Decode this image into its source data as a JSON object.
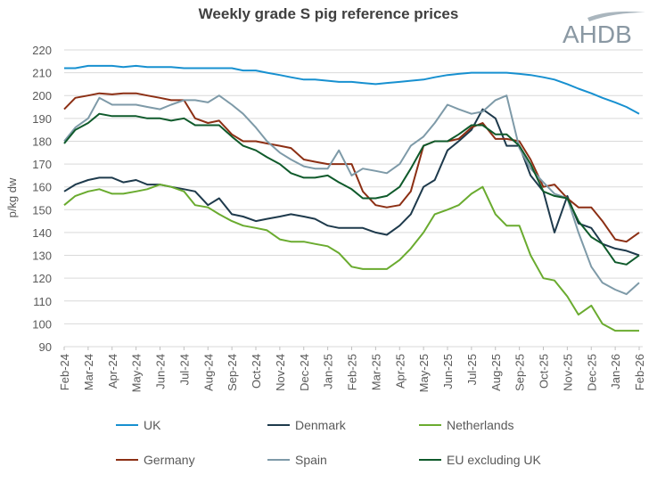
{
  "chart_data": {
    "type": "line",
    "title": "Weekly grade S pig reference prices",
    "ylabel": "p/kg dw",
    "xlabel": "",
    "ylim": [
      90,
      220
    ],
    "yticks": [
      90,
      100,
      110,
      120,
      130,
      140,
      150,
      160,
      170,
      180,
      190,
      200,
      210,
      220
    ],
    "xtick_labels": [
      "Feb-24",
      "Mar-24",
      "Apr-24",
      "May-24",
      "Jun-24",
      "Jul-24",
      "Aug-24",
      "Sep-24",
      "Oct-24",
      "Nov-24",
      "Dec-24",
      "Jan-25",
      "Feb-25",
      "Mar-25",
      "Apr-25",
      "May-25",
      "Jun-25",
      "Jul-25",
      "Aug-25",
      "Sep-25",
      "Oct-25",
      "Nov-25",
      "Dec-25",
      "Jan-26",
      "Feb-26"
    ],
    "grid": true,
    "legend": "bottom",
    "x": [
      "2024-02-01",
      "2024-02-15",
      "2024-03-01",
      "2024-03-15",
      "2024-04-01",
      "2024-04-15",
      "2024-05-01",
      "2024-05-15",
      "2024-06-01",
      "2024-06-15",
      "2024-07-01",
      "2024-07-15",
      "2024-08-01",
      "2024-08-15",
      "2024-09-01",
      "2024-09-15",
      "2024-10-01",
      "2024-10-15",
      "2024-11-01",
      "2024-11-15",
      "2024-12-01",
      "2024-12-15",
      "2025-01-01",
      "2025-01-15",
      "2025-02-01",
      "2025-02-15",
      "2025-03-01",
      "2025-03-15",
      "2025-04-01",
      "2025-04-15",
      "2025-05-01",
      "2025-05-15",
      "2025-06-01",
      "2025-06-15",
      "2025-07-01",
      "2025-07-15",
      "2025-08-01",
      "2025-08-15",
      "2025-09-01",
      "2025-09-15",
      "2025-10-01",
      "2025-10-15",
      "2025-11-01",
      "2025-11-15",
      "2025-12-01",
      "2025-12-15",
      "2026-01-01",
      "2026-01-15",
      "2026-02-01"
    ],
    "series": [
      {
        "name": "UK",
        "color": "#1790d0",
        "values": [
          212,
          212,
          213,
          213,
          213,
          212.5,
          213,
          212.5,
          212.5,
          212.5,
          212,
          212,
          212,
          212,
          212,
          211,
          211,
          210,
          209,
          208,
          207,
          207,
          206.5,
          206,
          206,
          205.5,
          205,
          205.5,
          206,
          206.5,
          207,
          208,
          209,
          209.5,
          210,
          210,
          210,
          210,
          209.5,
          209,
          208,
          207,
          205,
          203,
          201,
          199,
          197,
          195,
          192
        ]
      },
      {
        "name": "Denmark",
        "color": "#1e3a4c",
        "values": [
          158,
          161,
          163,
          164,
          164,
          162,
          163,
          161,
          161,
          160,
          159,
          158,
          152,
          155,
          148,
          147,
          145,
          146,
          147,
          148,
          147,
          146,
          143,
          142,
          142,
          142,
          140,
          139,
          143,
          148,
          160,
          163,
          176,
          180,
          185,
          194,
          190,
          178,
          178,
          165,
          158,
          140,
          156,
          144,
          142,
          135,
          133,
          132,
          130
        ]
      },
      {
        "name": "Netherlands",
        "color": "#6aab2f",
        "values": [
          152,
          156,
          158,
          159,
          157,
          157,
          158,
          159,
          161,
          160,
          158,
          152,
          151,
          148,
          145,
          143,
          142,
          141,
          137,
          136,
          136,
          135,
          134,
          131,
          125,
          124,
          124,
          124,
          128,
          133,
          140,
          148,
          150,
          152,
          157,
          160,
          148,
          143,
          143,
          130,
          120,
          119,
          112,
          104,
          108,
          100,
          97,
          97,
          97
        ]
      },
      {
        "name": "Germany",
        "color": "#8c2f14",
        "values": [
          194,
          199,
          200,
          201,
          200.5,
          201,
          201,
          200,
          199,
          198,
          198,
          190,
          188,
          189,
          183,
          180,
          180,
          179,
          178,
          177,
          172,
          171,
          170,
          170,
          170,
          158,
          152,
          151,
          152,
          158,
          178,
          180,
          180,
          181,
          186,
          188,
          181,
          181,
          180,
          172,
          160,
          161,
          155,
          151,
          151,
          145,
          137,
          136,
          140
        ]
      },
      {
        "name": "Spain",
        "color": "#7e9aa8",
        "values": [
          180,
          186,
          190,
          199,
          196,
          196,
          196,
          195,
          194,
          196,
          198,
          198,
          197,
          200,
          196,
          192,
          186,
          180,
          175,
          172,
          169,
          168,
          168,
          176,
          165,
          168,
          167,
          166,
          170,
          178,
          182,
          188,
          196,
          194,
          192,
          193,
          198,
          200,
          177,
          168,
          162,
          157,
          155,
          140,
          125,
          118,
          115,
          113,
          118
        ]
      },
      {
        "name": "EU excluding UK",
        "color": "#0f5a2b",
        "values": [
          179,
          185,
          188,
          192,
          191,
          191,
          191,
          190,
          190,
          189,
          190,
          187,
          187,
          187,
          182,
          178,
          176,
          173,
          170,
          166,
          164,
          164,
          165,
          162,
          159,
          155,
          155,
          156,
          160,
          168,
          178,
          180,
          180,
          183,
          187,
          187,
          183,
          183,
          178,
          170,
          158,
          156,
          155,
          145,
          138,
          135,
          127,
          126,
          130
        ]
      }
    ]
  },
  "logo": {
    "text": "AHDB"
  }
}
